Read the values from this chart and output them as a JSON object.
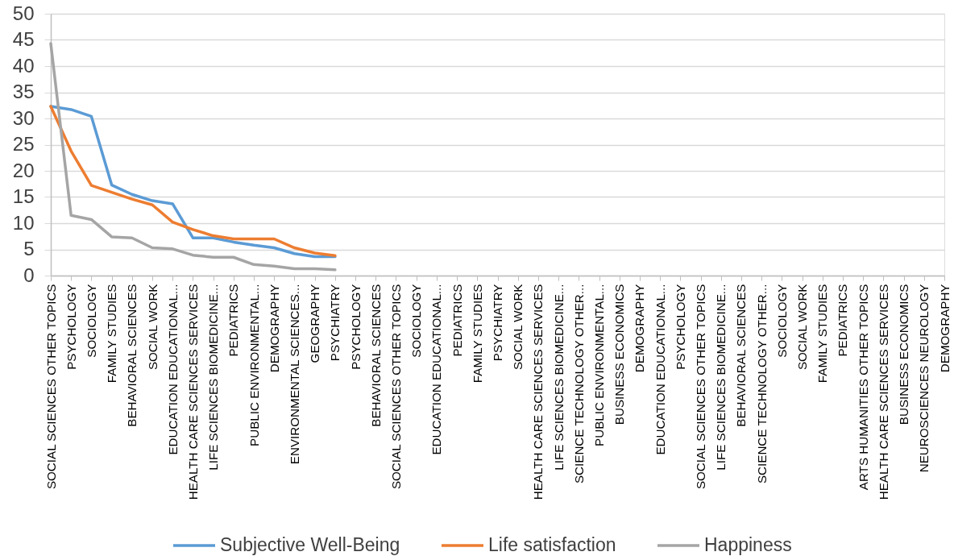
{
  "chart_data": {
    "type": "line",
    "categories": [
      "SOCIAL SCIENCES OTHER TOPICS",
      "PSYCHOLOGY",
      "SOCIOLOGY",
      "FAMILY STUDIES",
      "BEHAVIORAL SCIENCES",
      "SOCIAL WORK",
      "EDUCATION EDUCATIONAL...",
      "HEALTH CARE SCIENCES SERVICES",
      "LIFE SCIENCES BIOMEDICINE...",
      "PEDIATRICS",
      "PUBLIC ENVIRONMENTAL...",
      "DEMOGRAPHY",
      "ENVIRONMENTAL SCIENCES...",
      "GEOGRAPHY",
      "PSYCHIATRY",
      "PSYCHOLOGY",
      "BEHAVIORAL SCIENCES",
      "SOCIAL SCIENCES OTHER TOPICS",
      "SOCIOLOGY",
      "EDUCATION EDUCATIONAL...",
      "PEDIATRICS",
      "FAMILY STUDIES",
      "PSYCHIATRY",
      "SOCIAL WORK",
      "HEALTH CARE SCIENCES SERVICES",
      "LIFE SCIENCES BIOMEDICINE...",
      "SCIENCE TECHNOLOGY OTHER...",
      "PUBLIC ENVIRONMENTAL...",
      "BUSINESS ECONOMICS",
      "DEMOGRAPHY",
      "EDUCATION EDUCATIONAL...",
      "PSYCHOLOGY",
      "SOCIAL SCIENCES OTHER TOPICS",
      "LIFE SCIENCES BIOMEDICINE...",
      "BEHAVIORAL SCIENCES",
      "SCIENCE TECHNOLOGY OTHER...",
      "SOCIOLOGY",
      "SOCIAL WORK",
      "FAMILY STUDIES",
      "PEDIATRICS",
      "ARTS HUMANITIES OTHER TOPICS",
      "HEALTH CARE SCIENCES SERVICES",
      "BUSINESS ECONOMICS",
      "NEUROSCIENCES NEUROLOGY",
      "DEMOGRAPHY"
    ],
    "series": [
      {
        "name": "Subjective Well-Being",
        "color": "#5b9bd5",
        "values": [
          32.3,
          31.7,
          30.4,
          17.3,
          15.5,
          14.3,
          13.7,
          7.2,
          7.2,
          6.4,
          5.8,
          5.3,
          4.2,
          3.6,
          3.6,
          null,
          null,
          null,
          null,
          null,
          null,
          null,
          null,
          null,
          null,
          null,
          null,
          null,
          null,
          null,
          null,
          null,
          null,
          null,
          null,
          null,
          null,
          null,
          null,
          null,
          null,
          null,
          null,
          null,
          null
        ]
      },
      {
        "name": "Life satisfaction",
        "color": "#ed7d31",
        "values": [
          32.3,
          23.8,
          17.2,
          15.9,
          14.6,
          13.5,
          10.2,
          8.8,
          7.6,
          7.0,
          7.0,
          7.0,
          5.3,
          4.3,
          3.8,
          null,
          null,
          null,
          null,
          null,
          null,
          null,
          null,
          null,
          null,
          null,
          null,
          null,
          null,
          null,
          null,
          null,
          null,
          null,
          null,
          null,
          null,
          null,
          null,
          null,
          null,
          null,
          null,
          null,
          null
        ]
      },
      {
        "name": "Happiness",
        "color": "#a5a5a5",
        "values": [
          44.3,
          11.5,
          10.7,
          7.4,
          7.2,
          5.3,
          5.1,
          3.9,
          3.5,
          3.5,
          2.1,
          1.8,
          1.3,
          1.3,
          1.1,
          null,
          null,
          null,
          null,
          null,
          null,
          null,
          null,
          null,
          null,
          null,
          null,
          null,
          null,
          null,
          null,
          null,
          null,
          null,
          null,
          null,
          null,
          null,
          null,
          null,
          null,
          null,
          null,
          null,
          null
        ]
      }
    ],
    "ylim": [
      0,
      50
    ],
    "yticks": [
      0,
      5,
      10,
      15,
      20,
      25,
      30,
      35,
      40,
      45,
      50
    ],
    "grid": "y",
    "legend": "bottom"
  }
}
